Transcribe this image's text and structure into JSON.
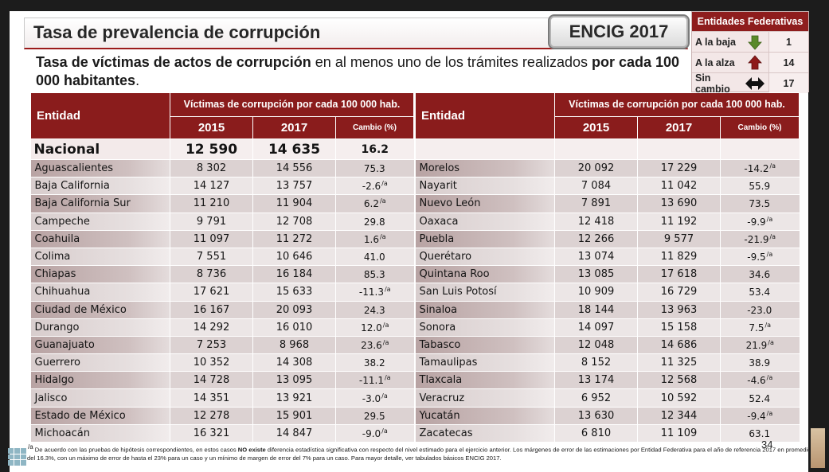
{
  "title": "Tasa de prevalencia de corrupción",
  "badge": "ENCIG 2017",
  "subtitle": {
    "bold1": "Tasa de víctimas de actos de corrupción",
    "normal1": " en al menos uno de los trámites realizados ",
    "bold2": "por cada 100 000 habitantes",
    "normal2": "."
  },
  "legend": {
    "header": "Entidades Federativas",
    "rows": [
      {
        "label": "A la baja",
        "icon": "down-arrow-green",
        "count": "1"
      },
      {
        "label": "A la alza",
        "icon": "up-arrow-red",
        "count": "14"
      },
      {
        "label": "Sin cambio",
        "icon": "left-right-arrow-black",
        "count": "17"
      }
    ]
  },
  "table": {
    "col_entity": "Entidad",
    "col_group": "Víctimas de corrupción por cada 100 000 hab.",
    "col_y1": "2015",
    "col_y2": "2017",
    "col_change": "Cambio (%)"
  },
  "nacional": {
    "name": "Nacional",
    "v2015": "12 590",
    "v2017": "14 635",
    "change": "16.2"
  },
  "left_rows": [
    {
      "name": "Aguascalientes",
      "v2015": "8 302",
      "v2017": "14 556",
      "change": "75.3",
      "sup": ""
    },
    {
      "name": "Baja California",
      "v2015": "14 127",
      "v2017": "13 757",
      "change": "-2.6",
      "sup": "/a"
    },
    {
      "name": "Baja California Sur",
      "v2015": "11 210",
      "v2017": "11 904",
      "change": "6.2",
      "sup": "/a"
    },
    {
      "name": "Campeche",
      "v2015": "9 791",
      "v2017": "12 708",
      "change": "29.8",
      "sup": ""
    },
    {
      "name": "Coahuila",
      "v2015": "11 097",
      "v2017": "11 272",
      "change": "1.6",
      "sup": "/a"
    },
    {
      "name": "Colima",
      "v2015": "7 551",
      "v2017": "10 646",
      "change": "41.0",
      "sup": ""
    },
    {
      "name": "Chiapas",
      "v2015": "8 736",
      "v2017": "16 184",
      "change": "85.3",
      "sup": ""
    },
    {
      "name": "Chihuahua",
      "v2015": "17 621",
      "v2017": "15 633",
      "change": "-11.3",
      "sup": "/a"
    },
    {
      "name": "Ciudad de México",
      "v2015": "16 167",
      "v2017": "20 093",
      "change": "24.3",
      "sup": ""
    },
    {
      "name": "Durango",
      "v2015": "14 292",
      "v2017": "16 010",
      "change": "12.0",
      "sup": "/a"
    },
    {
      "name": "Guanajuato",
      "v2015": "7 253",
      "v2017": "8 968",
      "change": "23.6",
      "sup": "/a"
    },
    {
      "name": "Guerrero",
      "v2015": "10 352",
      "v2017": "14 308",
      "change": "38.2",
      "sup": ""
    },
    {
      "name": "Hidalgo",
      "v2015": "14 728",
      "v2017": "13 095",
      "change": "-11.1",
      "sup": "/a"
    },
    {
      "name": "Jalisco",
      "v2015": "14 351",
      "v2017": "13 921",
      "change": "-3.0",
      "sup": "/a"
    },
    {
      "name": "Estado de México",
      "v2015": "12 278",
      "v2017": "15 901",
      "change": "29.5",
      "sup": ""
    },
    {
      "name": "Michoacán",
      "v2015": "16 321",
      "v2017": "14 847",
      "change": "-9.0",
      "sup": "/a"
    }
  ],
  "right_rows": [
    {
      "name": "Morelos",
      "v2015": "20 092",
      "v2017": "17 229",
      "change": "-14.2",
      "sup": "/a"
    },
    {
      "name": "Nayarit",
      "v2015": "7 084",
      "v2017": "11 042",
      "change": "55.9",
      "sup": ""
    },
    {
      "name": "Nuevo León",
      "v2015": "7 891",
      "v2017": "13 690",
      "change": "73.5",
      "sup": ""
    },
    {
      "name": "Oaxaca",
      "v2015": "12 418",
      "v2017": "11 192",
      "change": "-9.9",
      "sup": "/a"
    },
    {
      "name": "Puebla",
      "v2015": "12 266",
      "v2017": "9 577",
      "change": "-21.9",
      "sup": "/a"
    },
    {
      "name": "Querétaro",
      "v2015": "13 074",
      "v2017": "11 829",
      "change": "-9.5",
      "sup": "/a"
    },
    {
      "name": "Quintana Roo",
      "v2015": "13 085",
      "v2017": "17 618",
      "change": "34.6",
      "sup": ""
    },
    {
      "name": "San Luis Potosí",
      "v2015": "10 909",
      "v2017": "16 729",
      "change": "53.4",
      "sup": ""
    },
    {
      "name": "Sinaloa",
      "v2015": "18 144",
      "v2017": "13 963",
      "change": "-23.0",
      "sup": ""
    },
    {
      "name": "Sonora",
      "v2015": "14 097",
      "v2017": "15 158",
      "change": "7.5",
      "sup": "/a"
    },
    {
      "name": "Tabasco",
      "v2015": "12 048",
      "v2017": "14 686",
      "change": "21.9",
      "sup": "/a"
    },
    {
      "name": "Tamaulipas",
      "v2015": "8 152",
      "v2017": "11 325",
      "change": "38.9",
      "sup": ""
    },
    {
      "name": "Tlaxcala",
      "v2015": "13 174",
      "v2017": "12 568",
      "change": "-4.6",
      "sup": "/a"
    },
    {
      "name": "Veracruz",
      "v2015": "6 952",
      "v2017": "10 592",
      "change": "52.4",
      "sup": ""
    },
    {
      "name": "Yucatán",
      "v2015": "13 630",
      "v2017": "12 344",
      "change": "-9.4",
      "sup": "/a"
    },
    {
      "name": "Zacatecas",
      "v2015": "6 810",
      "v2017": "11 109",
      "change": "63.1",
      "sup": ""
    }
  ],
  "footnote": {
    "mark": "/a",
    "text1": " De acuerdo con las pruebas de hipótesis correspondientes, en estos casos ",
    "bold": "NO existe",
    "text2": " diferencia estadística significativa con respecto del nivel estimado para el ejercicio anterior. Los márgenes de error de las estimaciones por Entidad Federativa para el año de referencia 2017 en promedio son del 16.3%, con un máximo de error de hasta el 23% para un caso y un mínimo de margen de error del 7% para un caso. Para mayor detalle, ver tabulados básicos ENCIG 2017."
  },
  "page_number": "34",
  "colors": {
    "header_red": "#8a1c1c",
    "arrow_down": "#5a8a2a",
    "arrow_up": "#8e1a1a"
  }
}
